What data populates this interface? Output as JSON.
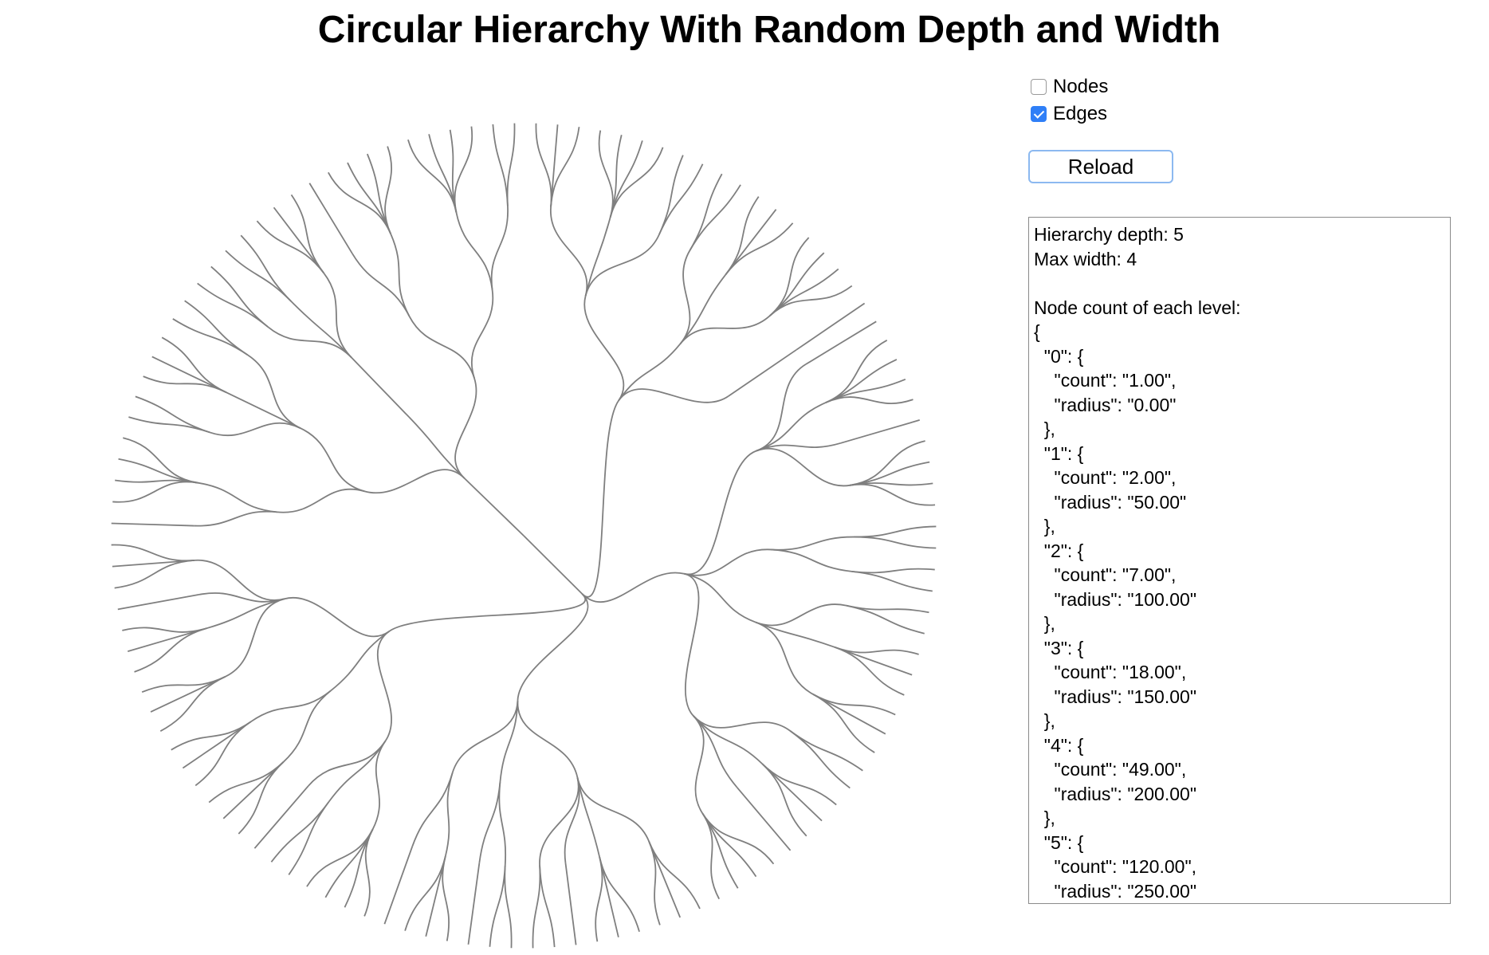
{
  "page": {
    "title": "Circular Hierarchy With Random Depth and Width"
  },
  "controls": {
    "nodes": {
      "label": "Nodes",
      "checked": false
    },
    "edges": {
      "label": "Edges",
      "checked": true
    },
    "reload_label": "Reload"
  },
  "info": {
    "depth_line": "Hierarchy depth: 5",
    "width_line": "Max width: 4",
    "levels_heading": "Node count of each level:",
    "levels": [
      {
        "level": "0",
        "count": "1.00",
        "radius": "0.00"
      },
      {
        "level": "1",
        "count": "2.00",
        "radius": "50.00"
      },
      {
        "level": "2",
        "count": "7.00",
        "radius": "100.00"
      },
      {
        "level": "3",
        "count": "18.00",
        "radius": "150.00"
      },
      {
        "level": "4",
        "count": "49.00",
        "radius": "200.00"
      },
      {
        "level": "5",
        "count": "120.00",
        "radius": "250.00"
      }
    ]
  },
  "colors": {
    "edge": "#7f7f7f",
    "checkbox_accent": "#2f7ff7",
    "button_border": "#8cb9f0"
  },
  "icons": {
    "checkbox_checked": "checkmark-icon"
  }
}
